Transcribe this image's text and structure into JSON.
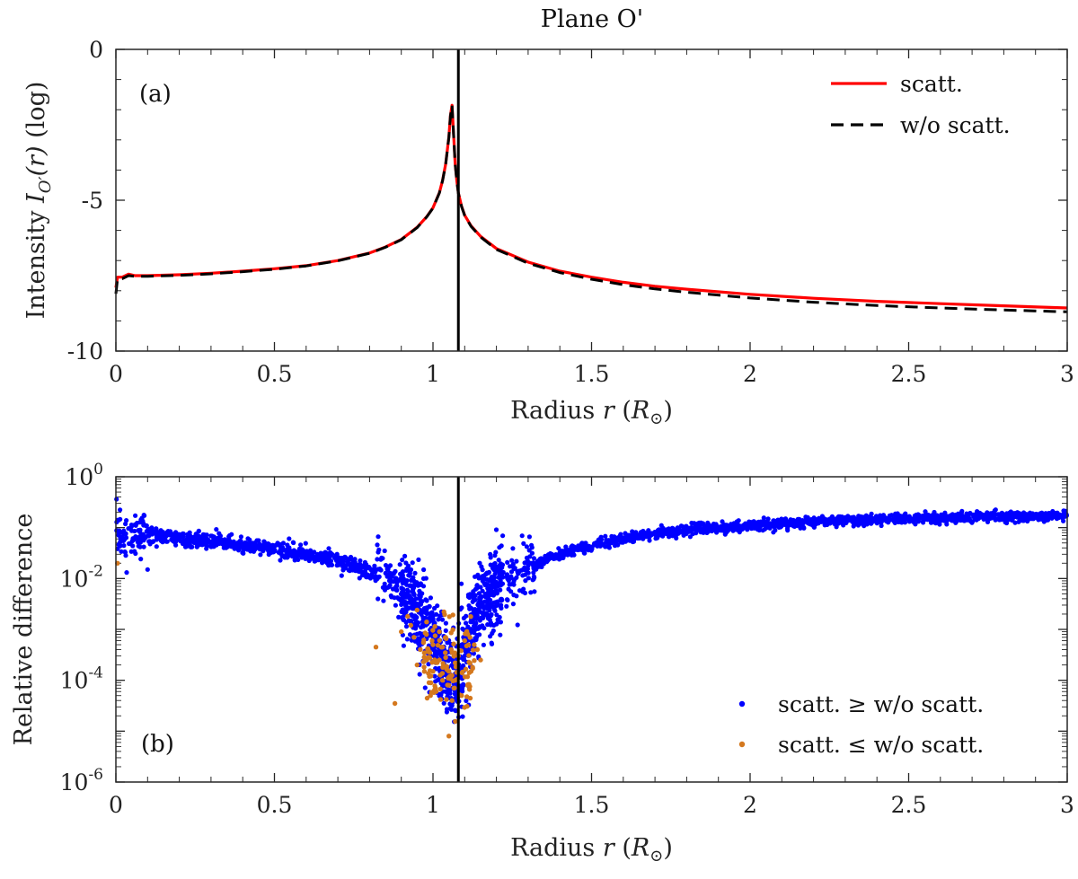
{
  "title": "Plane O'",
  "chart_data": [
    {
      "panel_label": "(a)",
      "type": "line",
      "xlabel": "Radius r (R⊙)",
      "ylabel": "Intensity I_O'(r) (log)",
      "ylabel_parts": {
        "prefix": "Intensity ",
        "symbol": "I",
        "subscript": "O′",
        "arg": "(r)",
        "suffix": " (log)"
      },
      "xlabel_parts": {
        "prefix": "Radius ",
        "var": "r",
        "open": " (",
        "unit": "R",
        "unit_sub": "⊙",
        "close": ")"
      },
      "xlim": [
        0,
        3
      ],
      "ylim": [
        -10,
        0
      ],
      "xticks": [
        0,
        0.5,
        1,
        1.5,
        2,
        2.5,
        3
      ],
      "xtick_labels": [
        "0",
        "0.5",
        "1",
        "1.5",
        "2",
        "2.5",
        "3"
      ],
      "yticks": [
        0,
        -5,
        -10
      ],
      "ytick_labels": [
        "0",
        "-5",
        "-10"
      ],
      "vline_x": 1.08,
      "legend_position": "top-right",
      "series": [
        {
          "name": "scatt.",
          "color": "#ff0000",
          "style": "solid",
          "x": [
            0,
            0.005,
            0.02,
            0.04,
            0.06,
            0.1,
            0.2,
            0.3,
            0.4,
            0.5,
            0.6,
            0.7,
            0.8,
            0.85,
            0.9,
            0.95,
            0.98,
            1.0,
            1.02,
            1.03,
            1.04,
            1.05,
            1.055,
            1.06,
            1.065,
            1.07,
            1.075,
            1.08,
            1.09,
            1.1,
            1.12,
            1.15,
            1.2,
            1.3,
            1.4,
            1.5,
            1.6,
            1.7,
            1.8,
            2.0,
            2.2,
            2.4,
            2.6,
            2.8,
            3.0
          ],
          "y": [
            -7.9,
            -7.55,
            -7.55,
            -7.45,
            -7.5,
            -7.5,
            -7.47,
            -7.42,
            -7.35,
            -7.27,
            -7.17,
            -7.0,
            -6.75,
            -6.55,
            -6.3,
            -5.9,
            -5.55,
            -5.25,
            -4.75,
            -4.35,
            -3.8,
            -2.9,
            -2.2,
            -1.85,
            -2.8,
            -3.8,
            -4.35,
            -4.75,
            -5.2,
            -5.5,
            -5.85,
            -6.2,
            -6.6,
            -7.05,
            -7.35,
            -7.55,
            -7.72,
            -7.85,
            -7.95,
            -8.12,
            -8.25,
            -8.35,
            -8.43,
            -8.5,
            -8.57
          ]
        },
        {
          "name": "w/o scatt.",
          "color": "#000000",
          "style": "dashed",
          "x": [
            0,
            0.005,
            0.02,
            0.04,
            0.06,
            0.1,
            0.2,
            0.3,
            0.4,
            0.5,
            0.6,
            0.7,
            0.8,
            0.85,
            0.9,
            0.95,
            0.98,
            1.0,
            1.02,
            1.03,
            1.04,
            1.05,
            1.055,
            1.06,
            1.065,
            1.07,
            1.075,
            1.08,
            1.09,
            1.1,
            1.12,
            1.15,
            1.2,
            1.3,
            1.4,
            1.5,
            1.6,
            1.7,
            1.8,
            2.0,
            2.2,
            2.4,
            2.6,
            2.8,
            3.0
          ],
          "y": [
            -8.1,
            -7.6,
            -7.6,
            -7.5,
            -7.52,
            -7.52,
            -7.49,
            -7.44,
            -7.37,
            -7.29,
            -7.18,
            -7.01,
            -6.76,
            -6.56,
            -6.31,
            -5.91,
            -5.56,
            -5.26,
            -4.76,
            -4.36,
            -3.81,
            -2.91,
            -2.21,
            -1.86,
            -2.81,
            -3.81,
            -4.36,
            -4.76,
            -5.21,
            -5.51,
            -5.87,
            -6.22,
            -6.63,
            -7.09,
            -7.4,
            -7.62,
            -7.8,
            -7.94,
            -8.05,
            -8.24,
            -8.38,
            -8.49,
            -8.57,
            -8.64,
            -8.7
          ]
        }
      ]
    },
    {
      "panel_label": "(b)",
      "type": "scatter",
      "xlabel": "Radius r (R⊙)",
      "ylabel": "Relative difference",
      "xlabel_parts": {
        "prefix": "Radius ",
        "var": "r",
        "open": " (",
        "unit": "R",
        "unit_sub": "⊙",
        "close": ")"
      },
      "xlim": [
        0,
        3
      ],
      "ylim": [
        1e-06,
        1
      ],
      "yscale": "log",
      "xticks": [
        0,
        0.5,
        1,
        1.5,
        2,
        2.5,
        3
      ],
      "xtick_labels": [
        "0",
        "0.5",
        "1",
        "1.5",
        "2",
        "2.5",
        "3"
      ],
      "yticks": [
        1,
        0.01,
        0.0001,
        1e-06
      ],
      "ytick_labels": [
        {
          "base": "10",
          "exp": "0"
        },
        {
          "base": "10",
          "exp": "-2"
        },
        {
          "base": "10",
          "exp": "-4"
        },
        {
          "base": "10",
          "exp": "-6"
        }
      ],
      "vline_x": 1.08,
      "legend_position": "bottom-right",
      "series": [
        {
          "name": "scatt. ≥ w/o scatt.",
          "color": "#0000ff",
          "trend_x": [
            0.0,
            0.02,
            0.1,
            0.2,
            0.3,
            0.4,
            0.5,
            0.6,
            0.7,
            0.8,
            0.85,
            0.9,
            0.95,
            1.0,
            1.03,
            1.05,
            1.06,
            1.08,
            1.1,
            1.12,
            1.15,
            1.2,
            1.3,
            1.4,
            1.5,
            1.6,
            1.7,
            1.8,
            1.9,
            2.0,
            2.2,
            2.4,
            2.6,
            2.8,
            3.0
          ],
          "trend_y": [
            0.1,
            0.07,
            0.075,
            0.06,
            0.055,
            0.045,
            0.038,
            0.03,
            0.022,
            0.013,
            0.009,
            0.005,
            0.002,
            0.0006,
            0.00025,
            0.00012,
            0.0001,
            0.0001,
            0.0003,
            0.001,
            0.003,
            0.006,
            0.015,
            0.03,
            0.045,
            0.06,
            0.075,
            0.09,
            0.1,
            0.11,
            0.13,
            0.145,
            0.155,
            0.165,
            0.17
          ]
        },
        {
          "name": "scatt. ≤ w/o scatt.",
          "color": "#d4781e",
          "x": [
            0.005,
            0.82,
            0.88,
            0.9,
            0.92,
            0.93,
            0.94,
            0.95,
            0.95,
            0.96,
            0.97,
            0.98,
            0.98,
            0.99,
            1.0,
            1.0,
            1.01,
            1.02,
            1.02,
            1.03,
            1.03,
            1.04,
            1.04,
            1.05,
            1.05,
            1.05,
            1.06,
            1.06,
            1.07,
            1.07,
            1.08,
            1.09,
            1.1,
            1.11,
            1.12,
            1.13,
            1.14,
            1.15
          ],
          "y": [
            0.02,
            0.00045,
            3.5e-05,
            0.0009,
            0.0018,
            0.0012,
            0.0007,
            0.0002,
            0.0024,
            0.0004,
            0.00055,
            0.00025,
            0.0014,
            0.00035,
            0.00015,
            0.0005,
            6e-05,
            0.00025,
            0.0009,
            0.00045,
            0.0001,
            0.00028,
            0.0007,
            8e-05,
            0.00015,
            8e-06,
            4e-05,
            0.00035,
            0.0001,
            0.00022,
            0.0003,
            5e-05,
            0.0006,
            0.0008,
            0.00015,
            0.0005,
            0.0004,
            0.00025
          ]
        }
      ]
    }
  ]
}
